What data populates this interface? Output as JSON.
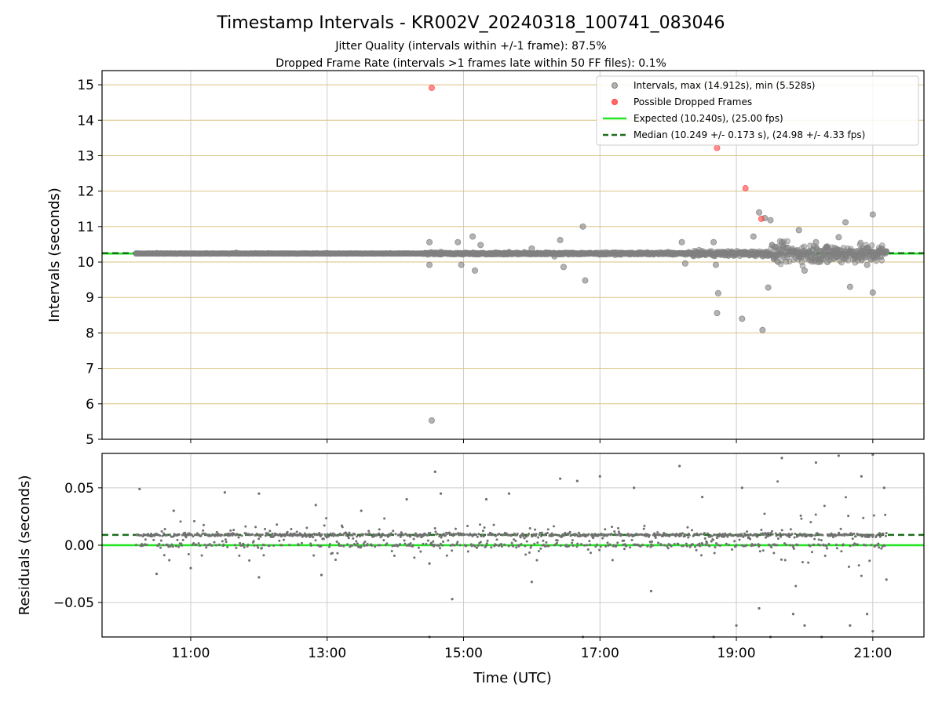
{
  "chart_data": [
    {
      "type": "scatter",
      "title": "Timestamp Intervals - KR002V_20240318_100741_083046",
      "subtitles": [
        "Jitter Quality (intervals within +/-1 frame): 87.5%",
        "Dropped Frame Rate (intervals >1 frames late within 50 FF files): 0.1%"
      ],
      "xlabel": "",
      "ylabel": "Intervals (seconds)",
      "xlim": [
        "09:42",
        "21:45"
      ],
      "ylim": [
        5,
        15.4
      ],
      "x_ticks": [
        "11:00",
        "13:00",
        "15:00",
        "17:00",
        "19:00",
        "21:00"
      ],
      "y_ticks": [
        "5",
        "6",
        "7",
        "8",
        "9",
        "10",
        "11",
        "12",
        "13",
        "14",
        "15"
      ],
      "grid": true,
      "legend_position": "top-right",
      "legend": [
        "Intervals, max (14.912s), min (5.528s)",
        "Possible Dropped Frames",
        "Expected (10.240s), (25.00 fps)",
        "Median (10.249 +/- 0.173 s), (24.98 +/- 4.33 fps)"
      ],
      "expected_interval": 10.24,
      "median_interval": 10.249,
      "series": [
        {
          "name": "Intervals, max (14.912s), min (5.528s)",
          "color": "#808080",
          "points": [
            [
              "10:12",
              10.24
            ],
            [
              "10:30",
              10.25
            ],
            [
              "11:00",
              10.24
            ],
            [
              "11:40",
              10.26
            ],
            [
              "12:20",
              10.24
            ],
            [
              "13:00",
              10.25
            ],
            [
              "14:00",
              10.24
            ],
            [
              "14:30",
              10.56
            ],
            [
              "14:30",
              9.92
            ],
            [
              "14:32",
              5.53
            ],
            [
              "14:40",
              10.28
            ],
            [
              "14:55",
              10.56
            ],
            [
              "14:58",
              9.92
            ],
            [
              "15:08",
              10.72
            ],
            [
              "15:10",
              9.76
            ],
            [
              "15:15",
              10.48
            ],
            [
              "15:40",
              10.28
            ],
            [
              "16:00",
              10.38
            ],
            [
              "16:20",
              10.16
            ],
            [
              "16:25",
              10.62
            ],
            [
              "16:28",
              9.86
            ],
            [
              "16:45",
              11.0
            ],
            [
              "16:47",
              9.48
            ],
            [
              "17:30",
              10.24
            ],
            [
              "18:00",
              10.28
            ],
            [
              "18:12",
              10.56
            ],
            [
              "18:15",
              9.96
            ],
            [
              "18:40",
              10.56
            ],
            [
              "18:42",
              9.92
            ],
            [
              "18:44",
              9.12
            ],
            [
              "18:43",
              8.56
            ],
            [
              "19:05",
              8.4
            ],
            [
              "19:15",
              10.72
            ],
            [
              "19:20",
              11.4
            ],
            [
              "19:23",
              8.08
            ],
            [
              "19:25",
              11.24
            ],
            [
              "19:30",
              11.18
            ],
            [
              "19:28",
              9.28
            ],
            [
              "19:40",
              10.56
            ],
            [
              "19:55",
              10.9
            ],
            [
              "20:00",
              9.76
            ],
            [
              "20:10",
              10.56
            ],
            [
              "20:20",
              10.0
            ],
            [
              "20:30",
              10.7
            ],
            [
              "20:36",
              11.12
            ],
            [
              "20:40",
              9.3
            ],
            [
              "20:50",
              10.32
            ],
            [
              "20:55",
              9.92
            ],
            [
              "21:00",
              11.34
            ],
            [
              "21:00",
              9.14
            ],
            [
              "21:05",
              10.24
            ],
            [
              "21:12",
              10.3
            ]
          ]
        },
        {
          "name": "Possible Dropped Frames",
          "color": "#ff4444",
          "points": [
            [
              "14:32",
              14.912
            ],
            [
              "18:43",
              13.22
            ],
            [
              "19:08",
              12.08
            ],
            [
              "19:22",
              11.22
            ]
          ]
        }
      ]
    },
    {
      "type": "scatter",
      "title": "",
      "xlabel": "Time (UTC)",
      "ylabel": "Residuals (seconds)",
      "xlim": [
        "09:42",
        "21:45"
      ],
      "ylim": [
        -0.08,
        0.08
      ],
      "x_ticks": [
        "11:00",
        "13:00",
        "15:00",
        "17:00",
        "19:00",
        "21:00"
      ],
      "y_ticks": [
        "0.05",
        "0.00",
        "−0.05"
      ],
      "grid": true,
      "expected_residual": 0.0,
      "median_residual": 0.009,
      "series": [
        {
          "name": "",
          "color": "#707070",
          "points": [
            [
              "10:15",
              0.049
            ],
            [
              "10:30",
              -0.025
            ],
            [
              "10:45",
              0.03
            ],
            [
              "11:00",
              -0.02
            ],
            [
              "11:30",
              0.046
            ],
            [
              "12:00",
              0.045
            ],
            [
              "12:00",
              -0.028
            ],
            [
              "12:50",
              0.035
            ],
            [
              "12:55",
              -0.026
            ],
            [
              "13:30",
              0.03
            ],
            [
              "14:10",
              0.04
            ],
            [
              "14:30",
              -0.016
            ],
            [
              "14:40",
              0.045
            ],
            [
              "14:35",
              0.064
            ],
            [
              "14:30",
              -0.08
            ],
            [
              "14:50",
              -0.047
            ],
            [
              "15:20",
              0.04
            ],
            [
              "15:40",
              0.045
            ],
            [
              "16:00",
              -0.032
            ],
            [
              "16:25",
              0.058
            ],
            [
              "16:40",
              0.056
            ],
            [
              "16:45",
              -0.08
            ],
            [
              "17:00",
              0.06
            ],
            [
              "17:30",
              0.05
            ],
            [
              "17:45",
              -0.04
            ],
            [
              "18:10",
              0.069
            ],
            [
              "18:30",
              0.042
            ],
            [
              "18:40",
              -0.08
            ],
            [
              "19:00",
              -0.07
            ],
            [
              "19:05",
              0.05
            ],
            [
              "19:20",
              -0.055
            ],
            [
              "19:30",
              -0.08
            ],
            [
              "19:40",
              0.076
            ],
            [
              "19:50",
              -0.06
            ],
            [
              "20:00",
              -0.07
            ],
            [
              "20:10",
              0.072
            ],
            [
              "20:15",
              -0.08
            ],
            [
              "20:30",
              0.078
            ],
            [
              "20:40",
              -0.07
            ],
            [
              "20:50",
              0.06
            ],
            [
              "20:55",
              -0.06
            ],
            [
              "21:00",
              0.079
            ],
            [
              "21:00",
              -0.075
            ],
            [
              "21:10",
              0.05
            ],
            [
              "21:12",
              -0.03
            ]
          ]
        }
      ]
    }
  ],
  "colors": {
    "expected_line": "#22e622",
    "median_line": "#1a6e1a",
    "scatter": "#808080",
    "dropped": "#ff4444",
    "hgrid_top": "#d9c27f",
    "grid": "#cccccc"
  }
}
